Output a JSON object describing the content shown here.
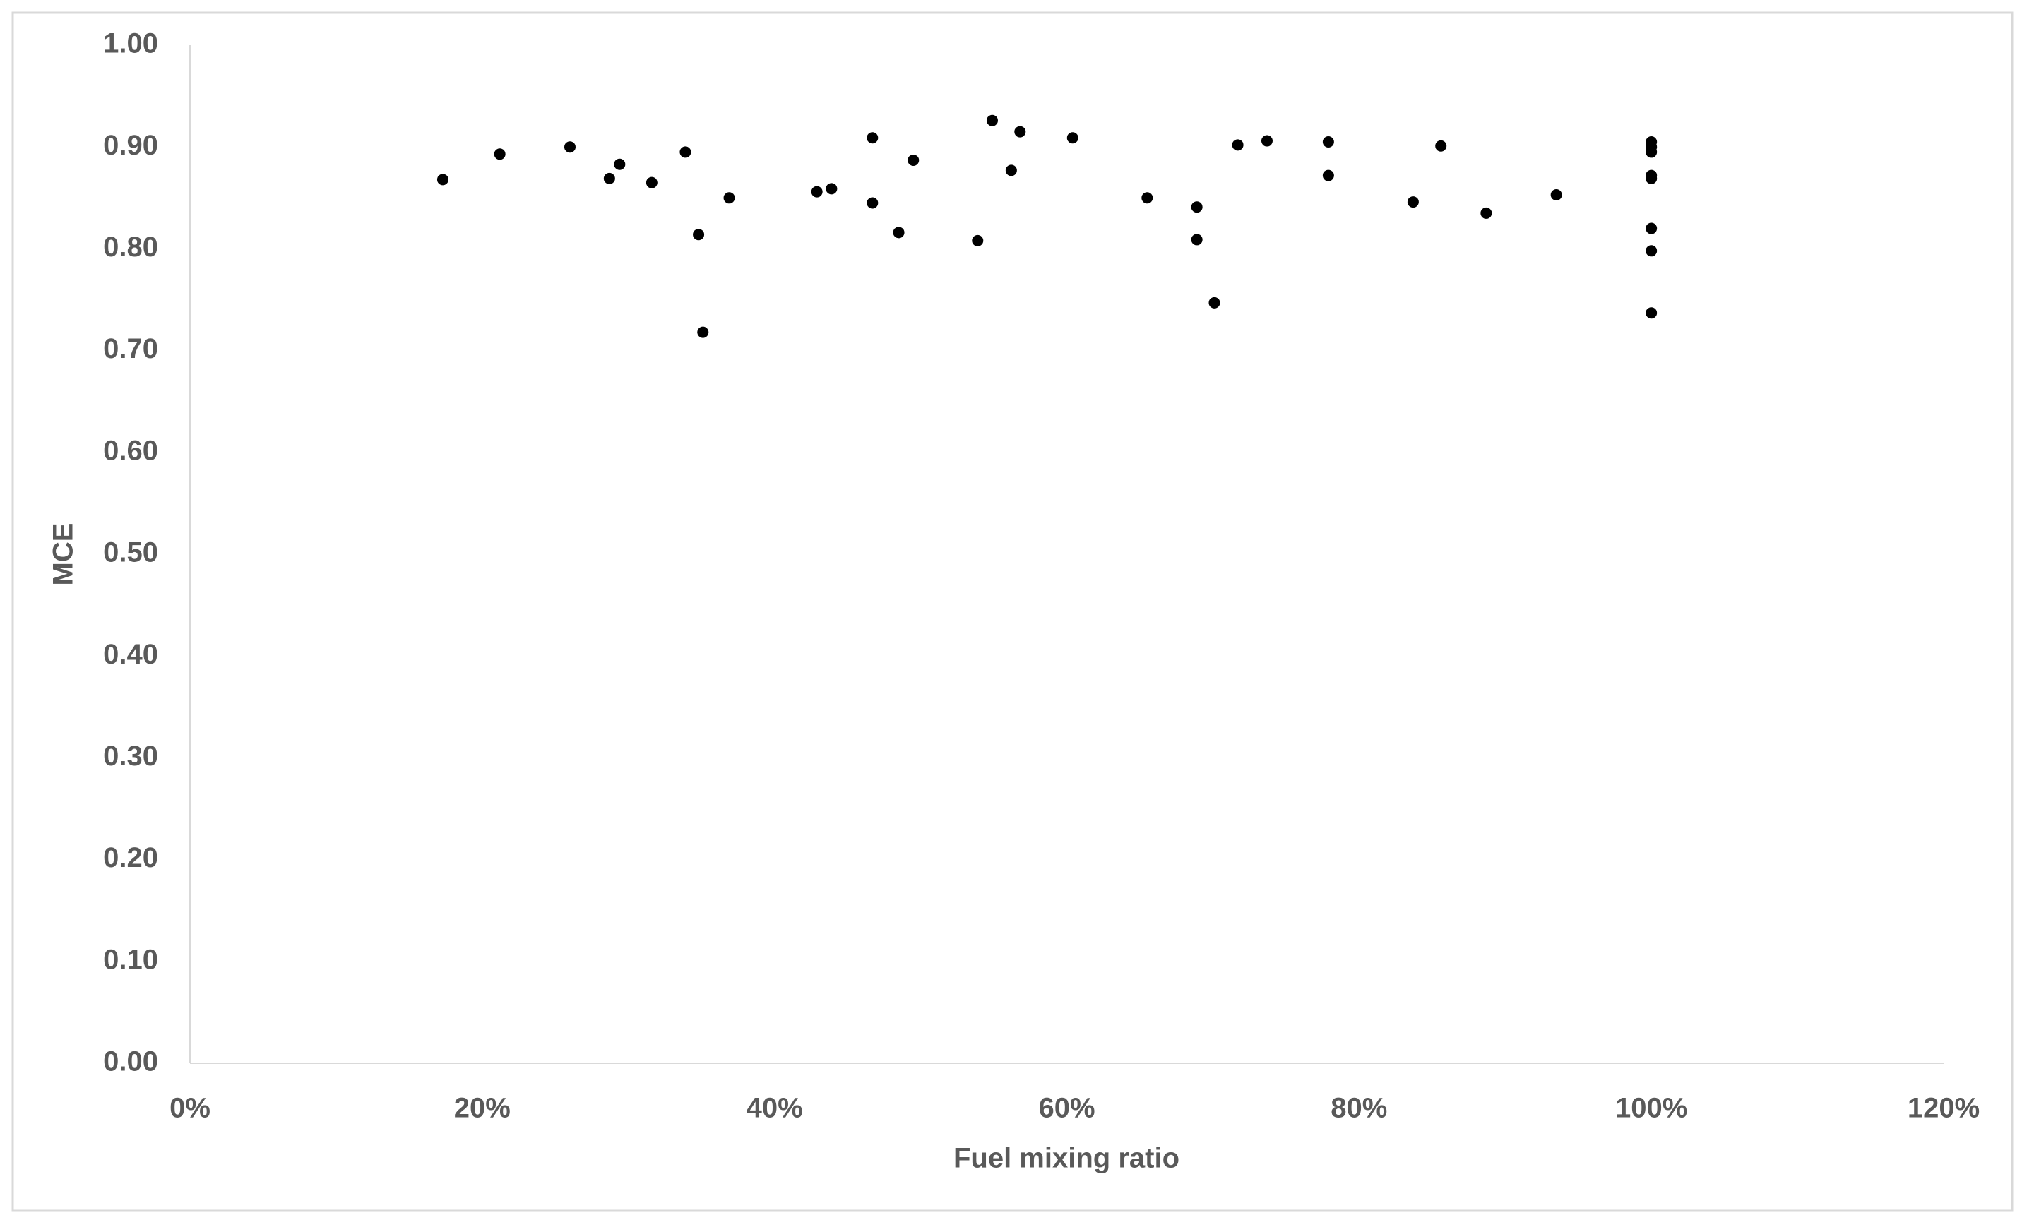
{
  "chart_data": {
    "type": "scatter",
    "x_label": "Fuel mixing ratio",
    "y_label": "MCE",
    "x": [
      17.3,
      21.2,
      26.0,
      28.7,
      29.4,
      31.6,
      33.9,
      34.8,
      35.1,
      36.9,
      42.9,
      43.9,
      46.7,
      46.7,
      48.5,
      49.5,
      53.9,
      54.9,
      56.2,
      56.8,
      60.4,
      65.5,
      68.9,
      68.9,
      70.1,
      71.7,
      73.7,
      77.9,
      77.9,
      83.7,
      85.6,
      88.7,
      93.5,
      100,
      100,
      100,
      100,
      100,
      100,
      100,
      100
    ],
    "values": [
      0.868,
      0.893,
      0.9,
      0.869,
      0.883,
      0.865,
      0.895,
      0.814,
      0.718,
      0.85,
      0.856,
      0.859,
      0.909,
      0.845,
      0.816,
      0.887,
      0.808,
      0.926,
      0.877,
      0.915,
      0.909,
      0.85,
      0.841,
      0.809,
      0.747,
      0.902,
      0.906,
      0.905,
      0.872,
      0.846,
      0.901,
      0.835,
      0.853,
      0.905,
      0.9,
      0.895,
      0.872,
      0.869,
      0.82,
      0.798,
      0.737
    ],
    "color": "#000000",
    "xlim": [
      0,
      120
    ],
    "xticks": [
      {
        "value": 0,
        "label": "0%"
      },
      {
        "value": 20,
        "label": "20%"
      },
      {
        "value": 40,
        "label": "40%"
      },
      {
        "value": 60,
        "label": "60%"
      },
      {
        "value": 80,
        "label": "80%"
      },
      {
        "value": 100,
        "label": "100%"
      },
      {
        "value": 120,
        "label": "120%"
      }
    ],
    "ylim": [
      0,
      1
    ],
    "yticks": [
      {
        "value": 0,
        "label": "0.00"
      },
      {
        "value": 0.1,
        "label": "0.10"
      },
      {
        "value": 0.2,
        "label": "0.20"
      },
      {
        "value": 0.3,
        "label": "0.30"
      },
      {
        "value": 0.4,
        "label": "0.40"
      },
      {
        "value": 0.5,
        "label": "0.50"
      },
      {
        "value": 0.6,
        "label": "0.60"
      },
      {
        "value": 0.7,
        "label": "0.70"
      },
      {
        "value": 0.8,
        "label": "0.80"
      },
      {
        "value": 0.9,
        "label": "0.90"
      },
      {
        "value": 1,
        "label": "1.00"
      }
    ],
    "grid": false
  }
}
